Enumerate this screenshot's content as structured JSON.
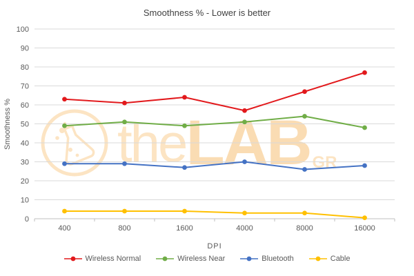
{
  "chart_data": {
    "type": "line",
    "title": "Smoothness % - Lower is better",
    "xlabel": "DPI",
    "ylabel": "Smoothness %",
    "categories": [
      "400",
      "800",
      "1600",
      "4000",
      "8000",
      "16000"
    ],
    "series": [
      {
        "name": "Wireless Normal",
        "color": "#e2191c",
        "values": [
          63,
          61,
          64,
          57,
          67,
          77
        ]
      },
      {
        "name": "Wireless Near",
        "color": "#70ad47",
        "values": [
          49,
          51,
          49,
          51,
          54,
          48
        ]
      },
      {
        "name": "Bluetooth",
        "color": "#4472c4",
        "values": [
          29,
          29,
          27,
          30,
          26,
          28
        ]
      },
      {
        "name": "Cable",
        "color": "#ffc000",
        "values": [
          4,
          4,
          4,
          3,
          3,
          0.5
        ]
      }
    ],
    "ylim": [
      0,
      100
    ],
    "ytick_step": 10,
    "grid": true,
    "legend_position": "bottom"
  },
  "watermark": {
    "prefix": "the",
    "main": "LAB",
    "suffix": "GR"
  },
  "colors": {
    "grid": "#d9d9d9",
    "axis_line": "#bfbfbf",
    "tick_text": "#595959",
    "title_text": "#404040",
    "watermark": "#f59a23"
  }
}
